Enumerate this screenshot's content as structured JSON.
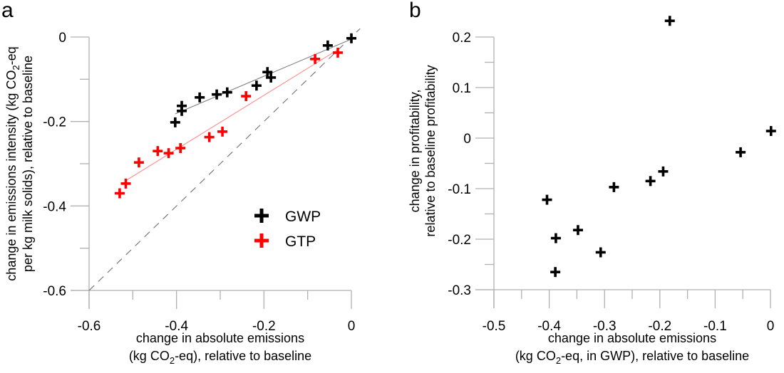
{
  "chart_data": [
    {
      "panel": "a",
      "type": "scatter",
      "panel_label": "a",
      "xlabel_line1": "change in absolute emissions",
      "xlabel_line2_pre": "(kg CO",
      "xlabel_line2_sub": "2",
      "xlabel_line2_post": "-eq), relative to baseline",
      "ylabel_line1_pre": "change in emissions intensity (kg CO",
      "ylabel_line1_sub": "2",
      "ylabel_line1_post": "-eq",
      "ylabel_line2": "per kg milk solids), relative to baseline",
      "xlim": [
        -0.6,
        0
      ],
      "ylim": [
        -0.6,
        0
      ],
      "x_ticks": [
        -0.6,
        -0.4,
        -0.2,
        0
      ],
      "x_tick_labels": [
        "-0.6",
        "-0.4",
        "-0.2",
        "0"
      ],
      "x_minor_ticks": [
        -0.5,
        -0.3,
        -0.1
      ],
      "y_ticks": [
        0,
        -0.2,
        -0.4,
        -0.6
      ],
      "y_tick_labels": [
        "0",
        "-0.2",
        "-0.4",
        "-0.6"
      ],
      "y_minor_ticks": [
        -0.1,
        -0.3,
        -0.5
      ],
      "reference_line": {
        "style": "dashed",
        "color": "#707070",
        "description": "1:1 line",
        "from": [
          -0.6,
          -0.6
        ],
        "to": [
          0.02,
          0.02
        ]
      },
      "legend": {
        "position": "lower-right",
        "entries": [
          {
            "label": "GWP",
            "color": "#000000"
          },
          {
            "label": "GTP",
            "color": "#ff0000"
          }
        ]
      },
      "series": [
        {
          "name": "GWP",
          "color": "#000000",
          "fit_line_color": "#808080",
          "fit_line": {
            "from": [
              -0.403,
              -0.182
            ],
            "to": [
              0,
              -0.005
            ]
          },
          "points": [
            [
              0.0,
              -0.003
            ],
            [
              -0.054,
              -0.02
            ],
            [
              -0.192,
              -0.083
            ],
            [
              -0.184,
              -0.096
            ],
            [
              -0.217,
              -0.115
            ],
            [
              -0.284,
              -0.131
            ],
            [
              -0.308,
              -0.136
            ],
            [
              -0.347,
              -0.143
            ],
            [
              -0.388,
              -0.163
            ],
            [
              -0.388,
              -0.175
            ],
            [
              -0.403,
              -0.202
            ]
          ]
        },
        {
          "name": "GTP",
          "color": "#ff0000",
          "fit_line_color": "#ff9090",
          "fit_line": {
            "from": [
              -0.516,
              -0.34
            ],
            "to": [
              -0.031,
              -0.03
            ]
          },
          "points": [
            [
              -0.031,
              -0.037
            ],
            [
              -0.083,
              -0.052
            ],
            [
              -0.241,
              -0.14
            ],
            [
              -0.295,
              -0.224
            ],
            [
              -0.325,
              -0.237
            ],
            [
              -0.391,
              -0.263
            ],
            [
              -0.418,
              -0.275
            ],
            [
              -0.443,
              -0.27
            ],
            [
              -0.486,
              -0.297
            ],
            [
              -0.516,
              -0.347
            ],
            [
              -0.53,
              -0.37
            ]
          ]
        }
      ]
    },
    {
      "panel": "b",
      "type": "scatter",
      "panel_label": "b",
      "xlabel_line1": "change in absolute emissions",
      "xlabel_line2_pre": "(kg CO",
      "xlabel_line2_sub": "2",
      "xlabel_line2_post": "-eq, in GWP), relative to baseline",
      "ylabel_line1": "change in profitability,",
      "ylabel_line2": "relative to baseline profitability",
      "xlim": [
        -0.5,
        0
      ],
      "ylim": [
        -0.3,
        0.2
      ],
      "x_ticks": [
        -0.5,
        -0.4,
        -0.3,
        -0.2,
        -0.1,
        0
      ],
      "x_tick_labels": [
        "-0.5",
        "-0.4",
        "-0.3",
        "-0.2",
        "-0.1",
        "0"
      ],
      "x_minor_ticks": [
        -0.45,
        -0.35,
        -0.25,
        -0.15,
        -0.05
      ],
      "y_ticks": [
        0.2,
        0.1,
        0,
        -0.1,
        -0.2,
        -0.3
      ],
      "y_tick_labels": [
        "0.2",
        "0.1",
        "0",
        "-0.1",
        "-0.2",
        "-0.3"
      ],
      "y_minor_ticks": [
        0.15,
        0.05,
        -0.05,
        -0.15,
        -0.25
      ],
      "series": [
        {
          "name": "GWP",
          "color": "#000000",
          "points": [
            [
              -0.182,
              0.232
            ],
            [
              0.001,
              0.014
            ],
            [
              -0.054,
              -0.028
            ],
            [
              -0.194,
              -0.066
            ],
            [
              -0.217,
              -0.085
            ],
            [
              -0.283,
              -0.097
            ],
            [
              -0.404,
              -0.122
            ],
            [
              -0.348,
              -0.182
            ],
            [
              -0.388,
              -0.198
            ],
            [
              -0.307,
              -0.226
            ],
            [
              -0.389,
              -0.265
            ]
          ]
        }
      ]
    }
  ]
}
